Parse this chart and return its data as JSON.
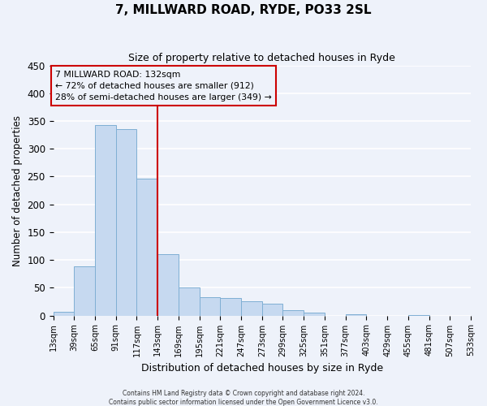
{
  "title": "7, MILLWARD ROAD, RYDE, PO33 2SL",
  "subtitle": "Size of property relative to detached houses in Ryde",
  "xlabel": "Distribution of detached houses by size in Ryde",
  "ylabel": "Number of detached properties",
  "bar_values": [
    7,
    89,
    343,
    336,
    246,
    110,
    50,
    33,
    32,
    25,
    22,
    10,
    5,
    0,
    2,
    0,
    0,
    1,
    0,
    0
  ],
  "bin_labels": [
    "13sqm",
    "39sqm",
    "65sqm",
    "91sqm",
    "117sqm",
    "143sqm",
    "169sqm",
    "195sqm",
    "221sqm",
    "247sqm",
    "273sqm",
    "299sqm",
    "325sqm",
    "351sqm",
    "377sqm",
    "403sqm",
    "429sqm",
    "455sqm",
    "481sqm",
    "507sqm",
    "533sqm"
  ],
  "bar_color": "#c6d9f0",
  "bar_edge_color": "#7fafd4",
  "background_color": "#eef2fa",
  "grid_color": "#ffffff",
  "red_line_color": "#cc0000",
  "box_edge_color": "#cc0000",
  "annotation_line1": "7 MILLWARD ROAD: 132sqm",
  "annotation_line2": "← 72% of detached houses are smaller (912)",
  "annotation_line3": "28% of semi-detached houses are larger (349) →",
  "ylim": [
    0,
    450
  ],
  "yticks": [
    0,
    50,
    100,
    150,
    200,
    250,
    300,
    350,
    400,
    450
  ],
  "footer_line1": "Contains HM Land Registry data © Crown copyright and database right 2024.",
  "footer_line2": "Contains public sector information licensed under the Open Government Licence v3.0."
}
